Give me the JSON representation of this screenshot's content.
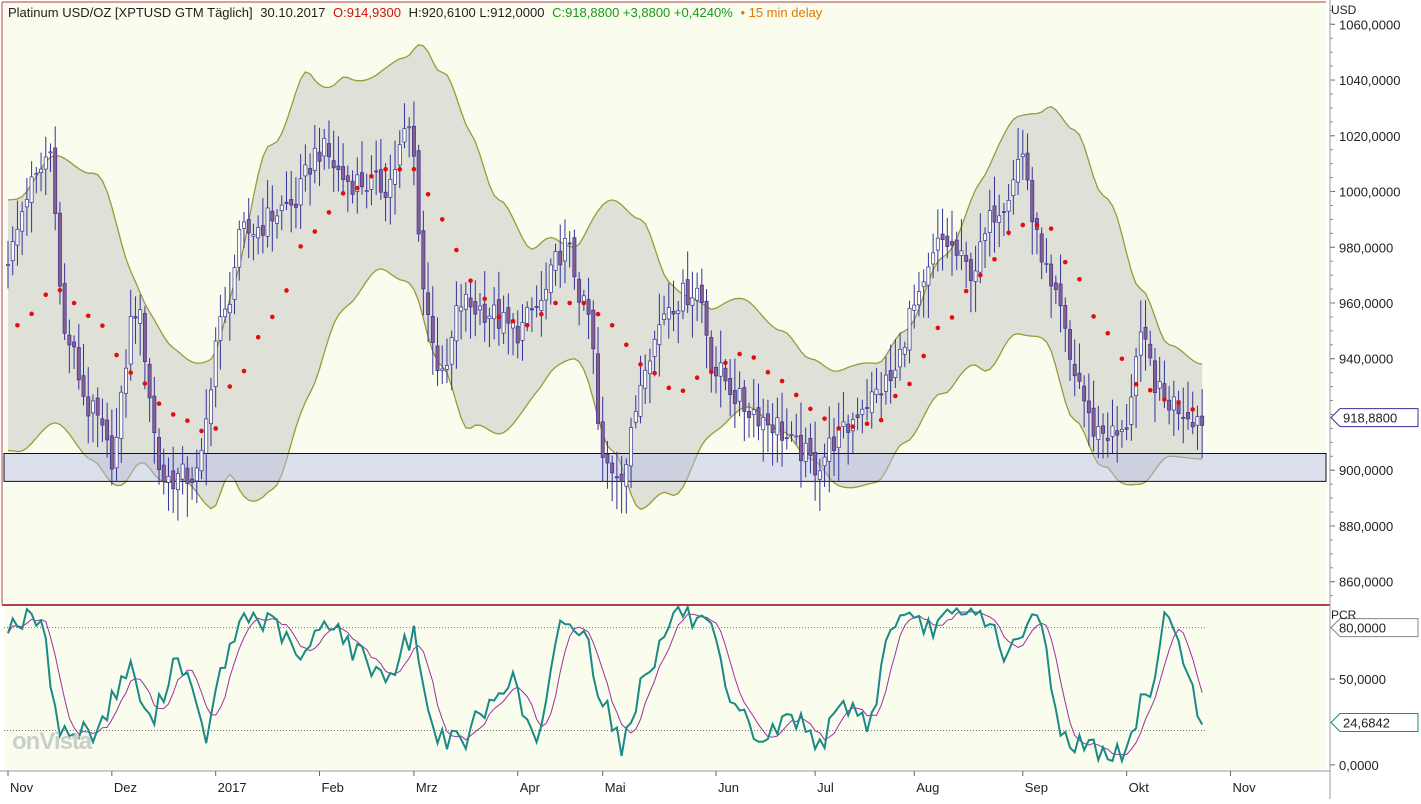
{
  "header": {
    "title": "Platinum USD/OZ [XPTUSD GTM Täglich]",
    "date": "30.10.2017",
    "open": "O:914,9300",
    "high_low": "H:920,6100 L:912,0000",
    "close_change": "C:918,8800 +3,8800 +0,4240%",
    "delay": "• 15 min delay"
  },
  "watermark": "onVista",
  "colors": {
    "background": "#fafcee",
    "band_fill": "#d9dbd4",
    "band_line": "#9a9a38",
    "sma_dots": "#e01010",
    "candle_line": "#333399",
    "candle_body": "#8b5e8b",
    "support_zone": "#b8bce8",
    "pcr_main": "#1a8a86",
    "pcr_signal": "#a030a0",
    "separator": "#b04040"
  },
  "chart_data": [
    {
      "type": "candlestick",
      "name": "price-panel",
      "y_axis_label": "USD",
      "y_ticks": [
        "1060,0000",
        "1040,0000",
        "1020,0000",
        "1000,0000",
        "980,0000",
        "960,0000",
        "940,0000",
        "900,0000",
        "880,0000",
        "860,0000"
      ],
      "y_tick_values": [
        1060,
        1040,
        1020,
        1000,
        980,
        960,
        940,
        900,
        880,
        860
      ],
      "ylim": [
        852,
        1068
      ],
      "current_price_label": "918,8800",
      "current_price": 918.88,
      "support_zone": [
        896,
        906
      ],
      "x_tick_labels": [
        "Nov",
        "Dez",
        "2017",
        "Feb",
        "Mrz",
        "Apr",
        "Mai",
        "Jun",
        "Jul",
        "Aug",
        "Sep",
        "Okt",
        "Nov"
      ],
      "x_tick_index": [
        0,
        22,
        44,
        66,
        86,
        108,
        126,
        150,
        171,
        192,
        215,
        237,
        259
      ],
      "bars": 254,
      "close_anchors": [
        [
          0,
          977
        ],
        [
          5,
          1002
        ],
        [
          9,
          1014
        ],
        [
          12,
          948
        ],
        [
          18,
          920
        ],
        [
          22,
          905
        ],
        [
          27,
          958
        ],
        [
          33,
          897
        ],
        [
          40,
          898
        ],
        [
          45,
          952
        ],
        [
          50,
          985
        ],
        [
          60,
          995
        ],
        [
          66,
          1015
        ],
        [
          72,
          1004
        ],
        [
          80,
          1002
        ],
        [
          85,
          1022
        ],
        [
          89,
          955
        ],
        [
          92,
          932
        ],
        [
          96,
          960
        ],
        [
          100,
          958
        ],
        [
          108,
          950
        ],
        [
          112,
          958
        ],
        [
          118,
          980
        ],
        [
          123,
          955
        ],
        [
          126,
          902
        ],
        [
          130,
          900
        ],
        [
          136,
          944
        ],
        [
          140,
          960
        ],
        [
          146,
          965
        ],
        [
          150,
          935
        ],
        [
          157,
          922
        ],
        [
          162,
          917
        ],
        [
          167,
          908
        ],
        [
          171,
          902
        ],
        [
          176,
          912
        ],
        [
          182,
          925
        ],
        [
          187,
          932
        ],
        [
          192,
          958
        ],
        [
          198,
          982
        ],
        [
          204,
          972
        ],
        [
          210,
          995
        ],
        [
          215,
          1013
        ],
        [
          218,
          982
        ],
        [
          222,
          960
        ],
        [
          226,
          935
        ],
        [
          230,
          915
        ],
        [
          236,
          912
        ],
        [
          240,
          945
        ],
        [
          245,
          925
        ],
        [
          253,
          918.88
        ]
      ],
      "sma_anchors": [
        [
          2,
          952
        ],
        [
          10,
          965
        ],
        [
          18,
          955
        ],
        [
          26,
          935
        ],
        [
          35,
          920
        ],
        [
          43,
          913
        ],
        [
          48,
          932
        ],
        [
          56,
          955
        ],
        [
          64,
          985
        ],
        [
          72,
          1000
        ],
        [
          80,
          1008
        ],
        [
          86,
          1008
        ],
        [
          92,
          990
        ],
        [
          98,
          968
        ],
        [
          104,
          955
        ],
        [
          110,
          952
        ],
        [
          116,
          960
        ],
        [
          122,
          960
        ],
        [
          128,
          952
        ],
        [
          134,
          938
        ],
        [
          142,
          928
        ],
        [
          148,
          935
        ],
        [
          156,
          942
        ],
        [
          164,
          932
        ],
        [
          170,
          922
        ],
        [
          176,
          915
        ],
        [
          184,
          917
        ],
        [
          190,
          930
        ],
        [
          198,
          952
        ],
        [
          206,
          970
        ],
        [
          214,
          988
        ],
        [
          220,
          988
        ],
        [
          226,
          970
        ],
        [
          232,
          950
        ],
        [
          240,
          930
        ],
        [
          246,
          925
        ],
        [
          253,
          921
        ]
      ],
      "band_half_width_anchors": [
        [
          0,
          45
        ],
        [
          10,
          48
        ],
        [
          20,
          52
        ],
        [
          30,
          28
        ],
        [
          38,
          22
        ],
        [
          45,
          28
        ],
        [
          55,
          62
        ],
        [
          62,
          60
        ],
        [
          70,
          42
        ],
        [
          78,
          35
        ],
        [
          84,
          40
        ],
        [
          90,
          52
        ],
        [
          96,
          55
        ],
        [
          104,
          42
        ],
        [
          112,
          26
        ],
        [
          120,
          20
        ],
        [
          128,
          45
        ],
        [
          134,
          52
        ],
        [
          140,
          38
        ],
        [
          150,
          22
        ],
        [
          160,
          18
        ],
        [
          170,
          18
        ],
        [
          180,
          22
        ],
        [
          190,
          20
        ],
        [
          200,
          25
        ],
        [
          210,
          38
        ],
        [
          218,
          40
        ],
        [
          226,
          52
        ],
        [
          234,
          48
        ],
        [
          240,
          35
        ],
        [
          246,
          20
        ],
        [
          253,
          17
        ]
      ]
    },
    {
      "type": "line",
      "name": "pcr-panel",
      "y_axis_label": "PCR",
      "y_ticks": [
        "80,0000",
        "50,0000",
        "0,0000"
      ],
      "y_tick_values": [
        80,
        50,
        0
      ],
      "current_value_label": "24,6842",
      "current_value": 24.68,
      "ylim": [
        -3,
        92
      ],
      "reference_lines": [
        80,
        20
      ],
      "series_anchors": [
        [
          0,
          83
        ],
        [
          6,
          85
        ],
        [
          12,
          18
        ],
        [
          18,
          20
        ],
        [
          26,
          55
        ],
        [
          30,
          25
        ],
        [
          36,
          62
        ],
        [
          42,
          18
        ],
        [
          46,
          60
        ],
        [
          50,
          87
        ],
        [
          56,
          82
        ],
        [
          62,
          62
        ],
        [
          68,
          85
        ],
        [
          74,
          65
        ],
        [
          80,
          52
        ],
        [
          86,
          75
        ],
        [
          90,
          20
        ],
        [
          96,
          12
        ],
        [
          100,
          28
        ],
        [
          106,
          50
        ],
        [
          112,
          15
        ],
        [
          118,
          85
        ],
        [
          122,
          75
        ],
        [
          126,
          40
        ],
        [
          130,
          12
        ],
        [
          136,
          60
        ],
        [
          142,
          90
        ],
        [
          148,
          80
        ],
        [
          154,
          30
        ],
        [
          160,
          15
        ],
        [
          166,
          28
        ],
        [
          172,
          15
        ],
        [
          178,
          35
        ],
        [
          182,
          25
        ],
        [
          188,
          85
        ],
        [
          194,
          80
        ],
        [
          200,
          85
        ],
        [
          206,
          88
        ],
        [
          212,
          65
        ],
        [
          218,
          85
        ],
        [
          224,
          15
        ],
        [
          230,
          10
        ],
        [
          236,
          5
        ],
        [
          242,
          45
        ],
        [
          246,
          92
        ],
        [
          250,
          48
        ],
        [
          253,
          25
        ]
      ]
    }
  ]
}
